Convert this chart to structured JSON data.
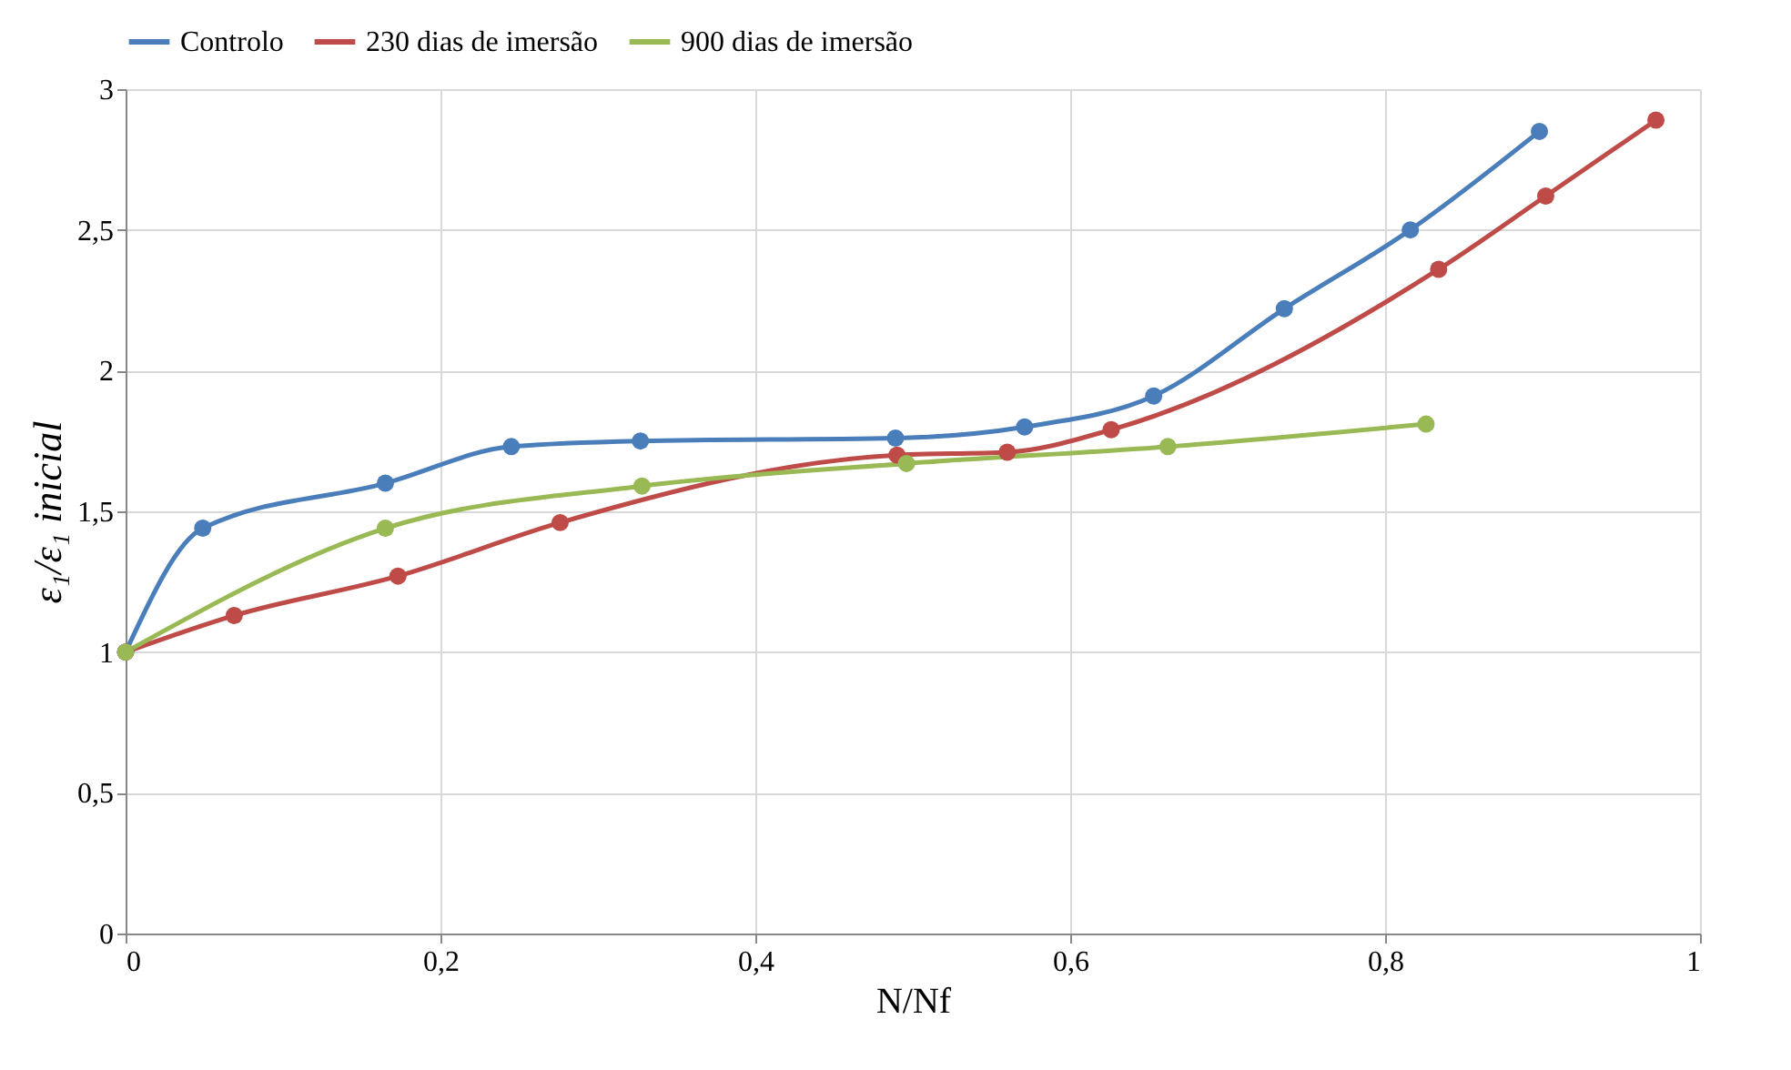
{
  "chart_data": {
    "type": "line",
    "xlabel": "N/Nf",
    "ylabel": "ε₁/ε₁ inicial",
    "xlim": [
      0,
      1
    ],
    "ylim": [
      0,
      3
    ],
    "xticks": [
      0,
      {
        "value": 0.2,
        "label": "0,2"
      },
      {
        "value": 0.4,
        "label": "0,4"
      },
      {
        "value": 0.6,
        "label": "0,6"
      },
      {
        "value": 0.8,
        "label": "0,8"
      },
      1
    ],
    "yticks": [
      0,
      {
        "value": 0.5,
        "label": "0,5"
      },
      1,
      {
        "value": 1.5,
        "label": "1,5"
      },
      2,
      {
        "value": 2.5,
        "label": "2,5"
      },
      3
    ],
    "grid": true,
    "legend": "top",
    "marker": "circle",
    "line_style": "solid",
    "series": [
      {
        "name": "Controlo",
        "color": "#4a7ebb",
        "x": [
          0,
          0.049,
          0.165,
          0.245,
          0.327,
          0.489,
          0.571,
          0.653,
          0.736,
          0.816,
          0.898
        ],
        "values": [
          1.0,
          1.44,
          1.6,
          1.73,
          1.75,
          1.76,
          1.8,
          1.91,
          2.22,
          2.5,
          2.85
        ]
      },
      {
        "name": "230 dias de imersão",
        "color": "#be4b48",
        "x": [
          0,
          0.069,
          0.173,
          0.276,
          0.49,
          0.56,
          0.626,
          0.834,
          0.902,
          0.972
        ],
        "values": [
          1.0,
          1.13,
          1.27,
          1.46,
          1.7,
          1.71,
          1.79,
          2.36,
          2.62,
          2.89
        ]
      },
      {
        "name": "900 dias de imersão",
        "color": "#98b954",
        "x": [
          0,
          0.165,
          0.328,
          0.496,
          0.662,
          0.826
        ],
        "values": [
          1.0,
          1.44,
          1.59,
          1.67,
          1.73,
          1.81
        ]
      }
    ]
  }
}
